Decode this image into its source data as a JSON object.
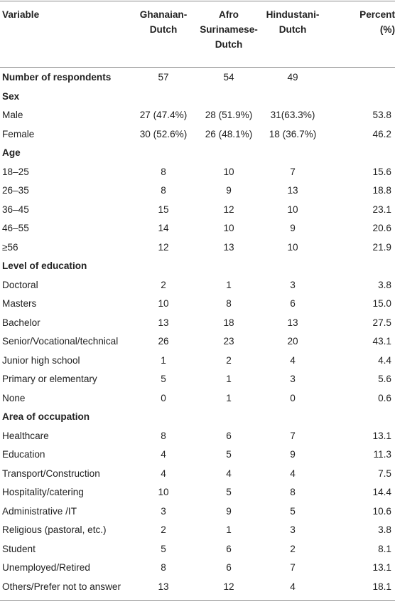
{
  "header": {
    "variable": "Variable",
    "col1": "Ghanaian-\nDutch",
    "col2": "Afro\nSurinamese-\nDutch",
    "col3": "Hindustani-\nDutch",
    "col4": "Percent\n(%)"
  },
  "rows": [
    {
      "type": "bold",
      "label": "Number of respondents",
      "values": [
        "57",
        "54",
        "49",
        ""
      ]
    },
    {
      "type": "section",
      "label": "Sex",
      "values": [
        "",
        "",
        "",
        ""
      ]
    },
    {
      "type": "data",
      "label": "Male",
      "values": [
        "27 (47.4%)",
        "28 (51.9%)",
        "31(63.3%)",
        "53.8"
      ]
    },
    {
      "type": "data",
      "label": "Female",
      "values": [
        "30 (52.6%)",
        "26 (48.1%)",
        "18 (36.7%)",
        "46.2"
      ]
    },
    {
      "type": "section",
      "label": "Age",
      "values": [
        "",
        "",
        "",
        ""
      ]
    },
    {
      "type": "data",
      "label": "18–25",
      "values": [
        "8",
        "10",
        "7",
        "15.6"
      ]
    },
    {
      "type": "data",
      "label": "26–35",
      "values": [
        "8",
        "9",
        "13",
        "18.8"
      ]
    },
    {
      "type": "data",
      "label": "36–45",
      "values": [
        "15",
        "12",
        "10",
        "23.1"
      ]
    },
    {
      "type": "data",
      "label": "46–55",
      "values": [
        "14",
        "10",
        "9",
        "20.6"
      ]
    },
    {
      "type": "data",
      "label": "≥56",
      "values": [
        "12",
        "13",
        "10",
        "21.9"
      ]
    },
    {
      "type": "section",
      "label": "Level of education",
      "values": [
        "",
        "",
        "",
        ""
      ]
    },
    {
      "type": "data",
      "label": "Doctoral",
      "values": [
        "2",
        "1",
        "3",
        "3.8"
      ]
    },
    {
      "type": "data",
      "label": "Masters",
      "values": [
        "10",
        "8",
        "6",
        "15.0"
      ]
    },
    {
      "type": "data",
      "label": "Bachelor",
      "values": [
        "13",
        "18",
        "13",
        "27.5"
      ]
    },
    {
      "type": "data",
      "label": "Senior/Vocational/technical",
      "values": [
        "26",
        "23",
        "20",
        "43.1"
      ]
    },
    {
      "type": "data",
      "label": "Junior high school",
      "values": [
        "1",
        "2",
        "4",
        "4.4"
      ]
    },
    {
      "type": "data",
      "label": "Primary or elementary",
      "values": [
        "5",
        "1",
        "3",
        "5.6"
      ]
    },
    {
      "type": "data",
      "label": "None",
      "values": [
        "0",
        "1",
        "0",
        "0.6"
      ]
    },
    {
      "type": "section",
      "label": "Area of occupation",
      "values": [
        "",
        "",
        "",
        ""
      ]
    },
    {
      "type": "data",
      "label": "Healthcare",
      "values": [
        "8",
        "6",
        "7",
        "13.1"
      ]
    },
    {
      "type": "data",
      "label": "Education",
      "values": [
        "4",
        "5",
        "9",
        "11.3"
      ]
    },
    {
      "type": "data",
      "label": "Transport/Construction",
      "values": [
        "4",
        "4",
        "4",
        "7.5"
      ]
    },
    {
      "type": "data",
      "label": "Hospitality/catering",
      "values": [
        "10",
        "5",
        "8",
        "14.4"
      ]
    },
    {
      "type": "data",
      "label": "Administrative /IT",
      "values": [
        "3",
        "9",
        "5",
        "10.6"
      ]
    },
    {
      "type": "data",
      "label": "Religious (pastoral, etc.)",
      "values": [
        "2",
        "1",
        "3",
        "3.8"
      ]
    },
    {
      "type": "data",
      "label": "Student",
      "values": [
        "5",
        "6",
        "2",
        "8.1"
      ]
    },
    {
      "type": "data",
      "label": "Unemployed/Retired",
      "values": [
        "8",
        "6",
        "7",
        "13.1"
      ]
    },
    {
      "type": "data",
      "label": "Others/Prefer not to answer",
      "values": [
        "13",
        "12",
        "4",
        "18.1"
      ]
    }
  ]
}
